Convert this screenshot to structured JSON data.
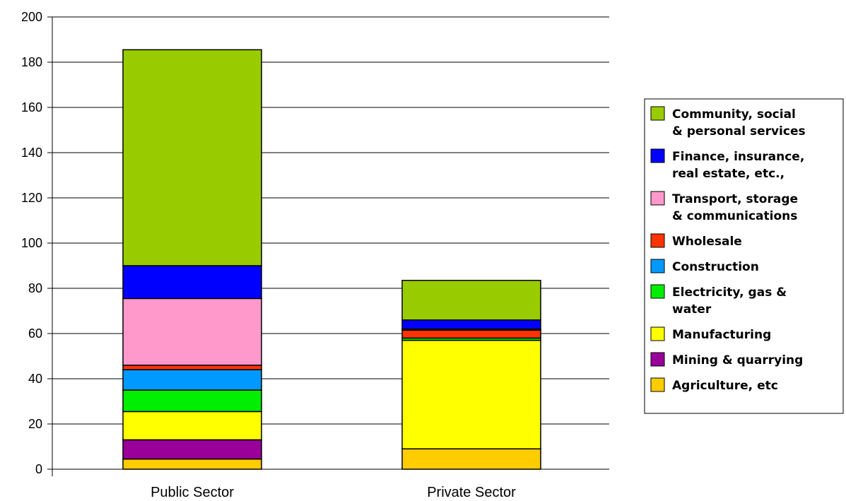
{
  "chart_data": {
    "type": "bar",
    "stacked": true,
    "categories": [
      "Public Sector",
      "Private Sector"
    ],
    "ylim": [
      0,
      200
    ],
    "yticks": [
      0,
      20,
      40,
      60,
      80,
      100,
      120,
      140,
      160,
      180,
      200
    ],
    "grid": true,
    "legend_position": "right",
    "series": [
      {
        "name": "Agriculture, etc",
        "color": "#FFCC00",
        "values": [
          4.5,
          9
        ]
      },
      {
        "name": "Mining & quarrying",
        "color": "#990099",
        "values": [
          8.5,
          0
        ]
      },
      {
        "name": "Manufacturing",
        "color": "#FFFF00",
        "values": [
          12.5,
          48
        ]
      },
      {
        "name": "Electricity, gas & water",
        "color": "#00EE00",
        "values": [
          9.5,
          1
        ]
      },
      {
        "name": "Construction",
        "color": "#0099FF",
        "values": [
          9,
          0
        ]
      },
      {
        "name": "Wholesale",
        "color": "#FF3300",
        "values": [
          2,
          3.5
        ]
      },
      {
        "name": "Transport, storage & communications",
        "color": "#FF99CC",
        "values": [
          29.5,
          0.5
        ]
      },
      {
        "name": "Finance, insurance, real estate, etc.,",
        "color": "#0000FF",
        "values": [
          14.5,
          4
        ]
      },
      {
        "name": "Community, social & personal services",
        "color": "#99CC00",
        "values": [
          95.5,
          17.5
        ]
      }
    ],
    "legend": [
      {
        "lines": [
          "Community, social",
          "& personal services"
        ],
        "color": "#99CC00"
      },
      {
        "lines": [
          "Finance, insurance,",
          "real estate, etc.,"
        ],
        "color": "#0000FF"
      },
      {
        "lines": [
          "Transport, storage",
          "& communications"
        ],
        "color": "#FF99CC"
      },
      {
        "lines": [
          "Wholesale"
        ],
        "color": "#FF3300"
      },
      {
        "lines": [
          "Construction"
        ],
        "color": "#0099FF"
      },
      {
        "lines": [
          "Electricity, gas &",
          "water"
        ],
        "color": "#00EE00"
      },
      {
        "lines": [
          "Manufacturing"
        ],
        "color": "#FFFF00"
      },
      {
        "lines": [
          "Mining & quarrying"
        ],
        "color": "#990099"
      },
      {
        "lines": [
          "Agriculture, etc"
        ],
        "color": "#FFCC00"
      }
    ]
  }
}
